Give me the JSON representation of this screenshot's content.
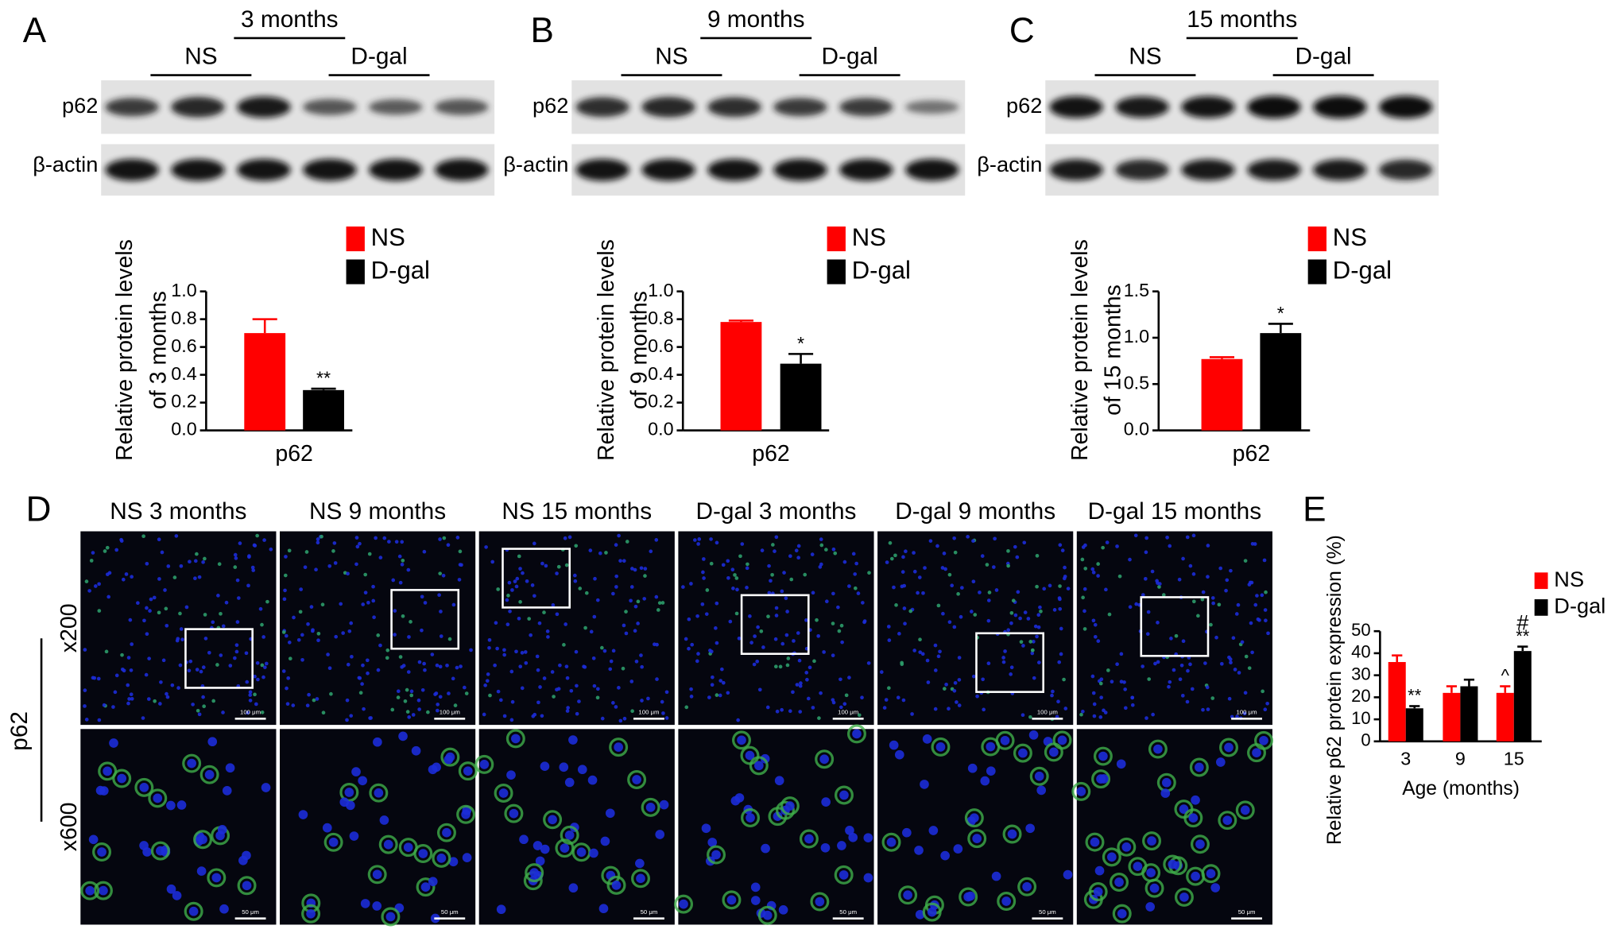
{
  "panel_letters": [
    "A",
    "B",
    "C",
    "D",
    "E"
  ],
  "blots": [
    {
      "title": "3 months",
      "groups": [
        "NS",
        "D-gal"
      ],
      "rows": [
        "p62",
        "β-actin"
      ]
    },
    {
      "title": "9 months",
      "groups": [
        "NS",
        "D-gal"
      ],
      "rows": [
        "p62",
        "β-actin"
      ]
    },
    {
      "title": "15 months",
      "groups": [
        "NS",
        "D-gal"
      ],
      "rows": [
        "p62",
        "β-actin"
      ]
    }
  ],
  "micrographs": {
    "stain": "p62",
    "columns": [
      "NS 3 months",
      "NS 9 months",
      "NS 15 months",
      "D-gal 3 months",
      "D-gal 9 months",
      "D-gal 15 months"
    ],
    "magnifications": [
      "x200",
      "x600"
    ],
    "scale_bars": [
      "100 μm",
      "50 μm"
    ]
  },
  "chart_data": [
    {
      "type": "bar",
      "ylabel": [
        "Relative protein levels",
        "of 3 months"
      ],
      "categories": [
        "p62"
      ],
      "ylim": [
        0,
        1
      ],
      "yticks": [
        {
          "value": 0,
          "label": "0.0"
        },
        0.2,
        0.4,
        0.6,
        0.8,
        {
          "value": 1,
          "label": "1.0"
        }
      ],
      "series": [
        {
          "name": "NS",
          "color": "#ff0000",
          "values": [
            0.7
          ],
          "errors": [
            0.1
          ],
          "labels": [
            null
          ]
        },
        {
          "name": "D-gal",
          "color": "#000000",
          "values": [
            0.29
          ],
          "errors": [
            0.01
          ],
          "labels": [
            "**"
          ]
        }
      ]
    },
    {
      "type": "bar",
      "ylabel": [
        "Relative protein levels",
        "of 9 months"
      ],
      "categories": [
        "p62"
      ],
      "ylim": [
        0,
        1
      ],
      "yticks": [
        {
          "value": 0,
          "label": "0.0"
        },
        0.2,
        0.4,
        0.6,
        0.8,
        {
          "value": 1,
          "label": "1.0"
        }
      ],
      "series": [
        {
          "name": "NS",
          "color": "#ff0000",
          "values": [
            0.78
          ],
          "errors": [
            0.01
          ],
          "labels": [
            null
          ]
        },
        {
          "name": "D-gal",
          "color": "#000000",
          "values": [
            0.48
          ],
          "errors": [
            0.07
          ],
          "labels": [
            "*"
          ]
        }
      ]
    },
    {
      "type": "bar",
      "ylabel": [
        "Relative protein levels",
        "of 15 months"
      ],
      "categories": [
        "p62"
      ],
      "ylim": [
        0,
        1.5
      ],
      "yticks": [
        {
          "value": 0,
          "label": "0.0"
        },
        0.5,
        {
          "value": 1,
          "label": "1.0"
        },
        1.5
      ],
      "series": [
        {
          "name": "NS",
          "color": "#ff0000",
          "values": [
            0.77
          ],
          "errors": [
            0.02
          ],
          "labels": [
            null
          ]
        },
        {
          "name": "D-gal",
          "color": "#000000",
          "values": [
            1.05
          ],
          "errors": [
            0.1
          ],
          "labels": [
            "*"
          ]
        }
      ]
    },
    {
      "type": "bar",
      "ylabel": [
        "Relative p62 protein expression (%)"
      ],
      "xlabel": "Age (months)",
      "categories": [
        "3",
        "9",
        "15"
      ],
      "ylim": [
        0,
        50
      ],
      "yticks": [
        0,
        10,
        20,
        30,
        40,
        50
      ],
      "series": [
        {
          "name": "NS",
          "color": "#ff0000",
          "values": [
            36,
            22,
            22
          ],
          "errors": [
            3,
            3,
            3
          ],
          "labels": [
            null,
            null,
            "^"
          ],
          "labels_top": [
            null,
            null,
            null
          ]
        },
        {
          "name": "D-gal",
          "color": "#000000",
          "values": [
            15,
            25,
            41
          ],
          "errors": [
            1,
            3,
            2
          ],
          "labels": [
            "**",
            null,
            "**"
          ],
          "labels_top": [
            null,
            null,
            "#"
          ]
        }
      ]
    }
  ]
}
